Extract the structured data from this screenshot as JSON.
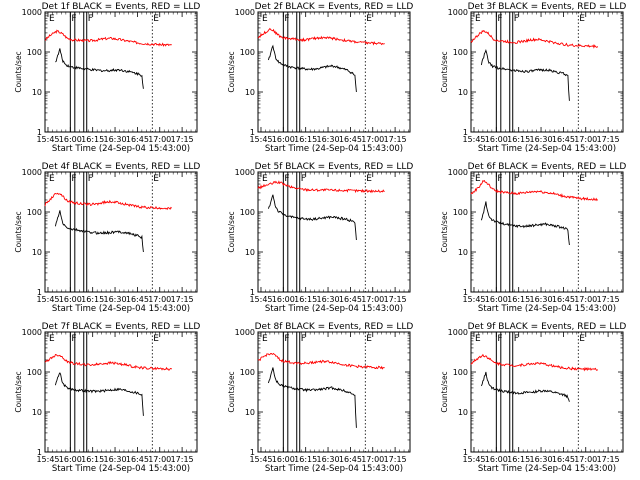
{
  "chart_data": [
    {
      "type": "line",
      "title": "Det 1f BLACK = Events, RED = LLD",
      "xlabel": "Start Time (24-Sep-04 15:43:00)",
      "ylabel": "Counts/sec",
      "x_ticks": [
        "15:45",
        "16:00",
        "16:15",
        "16:30",
        "16:45",
        "17:00",
        "17:15"
      ],
      "y_ticks": [
        "1",
        "10",
        "100",
        "1000"
      ],
      "ylim": [
        1,
        1000
      ],
      "y_scale": "log",
      "flags": [
        "E",
        "F",
        "F",
        "E"
      ],
      "series": [
        {
          "color": "#ff0000",
          "x": [
            0,
            3,
            6,
            8,
            10,
            12,
            15,
            19,
            25,
            30,
            35,
            40,
            45,
            50,
            55,
            60,
            65,
            70,
            75,
            80,
            85
          ],
          "values": [
            200,
            250,
            300,
            330,
            310,
            280,
            220,
            200,
            195,
            190,
            200,
            215,
            220,
            205,
            190,
            175,
            165,
            160,
            155,
            152,
            150
          ]
        },
        {
          "color": "#000000",
          "x": [
            7,
            8,
            9,
            10,
            11,
            12,
            14,
            18,
            22,
            26,
            30,
            35,
            40,
            45,
            50,
            55,
            60,
            63,
            64,
            65,
            66
          ],
          "values": [
            55,
            70,
            90,
            120,
            80,
            60,
            48,
            42,
            40,
            38,
            36,
            35,
            34,
            35,
            36,
            33,
            30,
            28,
            27,
            26,
            12
          ]
        }
      ]
    },
    {
      "type": "line",
      "title": "Det 2f BLACK = Events, RED = LLD",
      "xlabel": "Start Time (24-Sep-04 15:43:00)",
      "ylabel": "Counts/sec",
      "x_ticks": [
        "15:45",
        "16:00",
        "16:15",
        "16:30",
        "16:45",
        "17:00",
        "17:15"
      ],
      "y_ticks": [
        "1",
        "10",
        "100",
        "1000"
      ],
      "ylim": [
        1,
        1000
      ],
      "y_scale": "log",
      "flags": [
        "E",
        "F",
        "E"
      ],
      "series": [
        {
          "color": "#ff0000",
          "x": [
            0,
            3,
            6,
            8,
            10,
            12,
            15,
            19,
            25,
            30,
            35,
            40,
            45,
            50,
            55,
            60,
            65,
            70,
            75,
            80,
            85
          ],
          "values": [
            230,
            280,
            330,
            380,
            350,
            300,
            240,
            220,
            210,
            200,
            210,
            225,
            230,
            220,
            205,
            190,
            180,
            172,
            168,
            165,
            162
          ]
        },
        {
          "color": "#000000",
          "x": [
            7,
            8,
            9,
            10,
            11,
            12,
            14,
            18,
            22,
            26,
            30,
            35,
            40,
            45,
            50,
            55,
            60,
            63,
            64,
            65,
            66
          ],
          "values": [
            60,
            80,
            110,
            150,
            95,
            70,
            55,
            46,
            42,
            40,
            38,
            37,
            38,
            42,
            45,
            40,
            35,
            30,
            28,
            26,
            10
          ]
        }
      ]
    },
    {
      "type": "line",
      "title": "Det 3f BLACK = Events, RED = LLD",
      "xlabel": "Start Time (24-Sep-04 15:43:00)",
      "ylabel": "Counts/sec",
      "x_ticks": [
        "15:45",
        "16:00",
        "16:15",
        "16:30",
        "16:45",
        "17:00",
        "17:15"
      ],
      "y_ticks": [
        "1",
        "10",
        "100",
        "1000"
      ],
      "ylim": [
        1,
        1000
      ],
      "y_scale": "log",
      "flags": [
        "E",
        "F",
        "F",
        "E"
      ],
      "series": [
        {
          "color": "#ff0000",
          "x": [
            0,
            3,
            6,
            8,
            10,
            12,
            15,
            19,
            25,
            30,
            35,
            40,
            45,
            50,
            55,
            60,
            65,
            70,
            75,
            80,
            85
          ],
          "values": [
            180,
            230,
            290,
            330,
            320,
            280,
            210,
            190,
            180,
            175,
            185,
            200,
            205,
            190,
            175,
            160,
            150,
            145,
            142,
            140,
            138
          ]
        },
        {
          "color": "#000000",
          "x": [
            7,
            8,
            9,
            10,
            11,
            12,
            14,
            18,
            22,
            26,
            30,
            35,
            40,
            45,
            50,
            55,
            60,
            63,
            64,
            65,
            66
          ],
          "values": [
            50,
            65,
            85,
            110,
            75,
            55,
            45,
            40,
            38,
            36,
            34,
            33,
            33,
            35,
            36,
            33,
            30,
            28,
            26,
            25,
            6
          ]
        }
      ]
    },
    {
      "type": "line",
      "title": "Det 4f BLACK = Events, RED = LLD",
      "xlabel": "Start Time (24-Sep-04 15:43:00)",
      "ylabel": "Counts/sec",
      "x_ticks": [
        "15:45",
        "16:00",
        "16:15",
        "16:30",
        "16:45",
        "17:00",
        "17:15"
      ],
      "y_ticks": [
        "1",
        "10",
        "100",
        "1000"
      ],
      "ylim": [
        1,
        1000
      ],
      "y_scale": "log",
      "flags": [
        "E",
        "F",
        "F",
        "E"
      ],
      "series": [
        {
          "color": "#ff0000",
          "x": [
            0,
            3,
            6,
            8,
            10,
            12,
            15,
            19,
            25,
            30,
            35,
            40,
            45,
            50,
            55,
            60,
            65,
            70,
            75,
            80,
            85
          ],
          "values": [
            150,
            200,
            260,
            300,
            290,
            250,
            190,
            170,
            160,
            155,
            160,
            175,
            180,
            170,
            155,
            140,
            132,
            128,
            125,
            125,
            125
          ]
        },
        {
          "color": "#000000",
          "x": [
            7,
            8,
            9,
            10,
            11,
            12,
            14,
            18,
            22,
            26,
            30,
            35,
            40,
            45,
            50,
            55,
            60,
            63,
            64,
            65,
            66
          ],
          "values": [
            45,
            60,
            80,
            105,
            70,
            52,
            42,
            37,
            35,
            33,
            31,
            30,
            30,
            31,
            32,
            30,
            27,
            25,
            24,
            23,
            10
          ]
        }
      ]
    },
    {
      "type": "line",
      "title": "Det 5f BLACK = Events, RED = LLD",
      "xlabel": "Start Time (24-Sep-04 15:43:00)",
      "ylabel": "Counts/sec",
      "x_ticks": [
        "15:45",
        "16:00",
        "16:15",
        "16:30",
        "16:45",
        "17:00",
        "17:15"
      ],
      "y_ticks": [
        "1",
        "10",
        "100",
        "1000"
      ],
      "ylim": [
        1,
        1000
      ],
      "y_scale": "log",
      "flags": [
        "E",
        "F",
        "F",
        "E"
      ],
      "series": [
        {
          "color": "#ff0000",
          "x": [
            0,
            5,
            10,
            12,
            15,
            18,
            22,
            26,
            30,
            35,
            40,
            45,
            50,
            55,
            60,
            65,
            70,
            75,
            80,
            85
          ],
          "values": [
            400,
            460,
            520,
            560,
            540,
            480,
            420,
            390,
            370,
            360,
            355,
            355,
            350,
            348,
            345,
            340,
            338,
            335,
            332,
            330
          ]
        },
        {
          "color": "#000000",
          "x": [
            7,
            8,
            9,
            10,
            11,
            12,
            14,
            18,
            22,
            26,
            30,
            35,
            40,
            45,
            50,
            55,
            60,
            63,
            64,
            65,
            66
          ],
          "values": [
            120,
            150,
            200,
            280,
            180,
            130,
            100,
            85,
            75,
            70,
            68,
            66,
            68,
            72,
            75,
            70,
            65,
            60,
            58,
            55,
            20
          ]
        }
      ]
    },
    {
      "type": "line",
      "title": "Det 6f BLACK = Events, RED = LLD",
      "xlabel": "Start Time (24-Sep-04 15:43:00)",
      "ylabel": "Counts/sec",
      "x_ticks": [
        "15:45",
        "16:00",
        "16:15",
        "16:30",
        "16:45",
        "17:00",
        "17:15"
      ],
      "y_ticks": [
        "1",
        "10",
        "100",
        "1000"
      ],
      "ylim": [
        1,
        1000
      ],
      "y_scale": "log",
      "flags": [
        "E",
        "F",
        "F",
        "E"
      ],
      "series": [
        {
          "color": "#ff0000",
          "x": [
            0,
            3,
            6,
            8,
            10,
            12,
            15,
            19,
            25,
            30,
            35,
            40,
            45,
            50,
            55,
            60,
            65,
            70,
            75,
            80,
            85
          ],
          "values": [
            280,
            350,
            450,
            600,
            560,
            470,
            360,
            320,
            300,
            290,
            300,
            320,
            330,
            310,
            290,
            260,
            240,
            225,
            215,
            210,
            205
          ]
        },
        {
          "color": "#000000",
          "x": [
            7,
            8,
            9,
            10,
            11,
            12,
            14,
            18,
            22,
            26,
            30,
            35,
            40,
            45,
            50,
            55,
            60,
            63,
            64,
            65,
            66
          ],
          "values": [
            60,
            85,
            120,
            180,
            110,
            80,
            65,
            55,
            50,
            47,
            45,
            44,
            45,
            48,
            50,
            46,
            42,
            39,
            37,
            35,
            15
          ]
        }
      ]
    },
    {
      "type": "line",
      "title": "Det 7f BLACK = Events, RED = LLD",
      "xlabel": "Start Time (24-Sep-04 15:43:00)",
      "ylabel": "Counts/sec",
      "x_ticks": [
        "15:45",
        "16:00",
        "16:15",
        "16:30",
        "16:45",
        "17:00",
        "17:15"
      ],
      "y_ticks": [
        "1",
        "10",
        "100",
        "1000"
      ],
      "ylim": [
        1,
        1000
      ],
      "y_scale": "log",
      "flags": [
        "E",
        "F",
        "E"
      ],
      "series": [
        {
          "color": "#ff0000",
          "x": [
            0,
            3,
            6,
            8,
            10,
            12,
            15,
            19,
            25,
            30,
            35,
            40,
            45,
            50,
            55,
            60,
            65,
            70,
            75,
            80,
            85
          ],
          "values": [
            170,
            210,
            250,
            270,
            260,
            230,
            180,
            165,
            155,
            150,
            155,
            165,
            170,
            160,
            148,
            135,
            128,
            124,
            122,
            120,
            118
          ]
        },
        {
          "color": "#000000",
          "x": [
            7,
            8,
            9,
            10,
            11,
            12,
            14,
            18,
            22,
            26,
            30,
            35,
            40,
            45,
            50,
            55,
            60,
            63,
            64,
            65,
            66
          ],
          "values": [
            50,
            62,
            80,
            100,
            70,
            52,
            42,
            37,
            35,
            34,
            33,
            33,
            34,
            36,
            37,
            34,
            31,
            29,
            28,
            27,
            8
          ]
        }
      ]
    },
    {
      "type": "line",
      "title": "Det 8f BLACK = Events, RED = LLD",
      "xlabel": "Start Time (24-Sep-04 15:43:00)",
      "ylabel": "Counts/sec",
      "x_ticks": [
        "15:45",
        "16:00",
        "16:15",
        "16:30",
        "16:45",
        "17:00",
        "17:15"
      ],
      "y_ticks": [
        "1",
        "10",
        "100",
        "1000"
      ],
      "ylim": [
        1,
        1000
      ],
      "y_scale": "log",
      "flags": [
        "E",
        "F",
        "F",
        "E"
      ],
      "series": [
        {
          "color": "#ff0000",
          "x": [
            0,
            3,
            6,
            8,
            10,
            12,
            15,
            19,
            25,
            30,
            35,
            40,
            45,
            50,
            55,
            60,
            65,
            70,
            75,
            80,
            85
          ],
          "values": [
            190,
            230,
            270,
            290,
            280,
            250,
            195,
            180,
            170,
            165,
            170,
            180,
            185,
            175,
            160,
            148,
            140,
            135,
            132,
            130,
            128
          ]
        },
        {
          "color": "#000000",
          "x": [
            7,
            8,
            9,
            10,
            11,
            12,
            14,
            18,
            22,
            26,
            30,
            35,
            40,
            45,
            50,
            55,
            60,
            63,
            64,
            65,
            66
          ],
          "values": [
            55,
            70,
            95,
            130,
            85,
            62,
            50,
            43,
            40,
            38,
            36,
            35,
            36,
            38,
            40,
            36,
            32,
            29,
            27,
            25,
            4
          ]
        }
      ]
    },
    {
      "type": "line",
      "title": "Det 9f BLACK = Events, RED = LLD",
      "xlabel": "Start Time (24-Sep-04 15:43:00)",
      "ylabel": "Counts/sec",
      "x_ticks": [
        "15:45",
        "16:00",
        "16:15",
        "16:30",
        "16:45",
        "17:00",
        "17:15"
      ],
      "y_ticks": [
        "1",
        "10",
        "100",
        "1000"
      ],
      "ylim": [
        1,
        1000
      ],
      "y_scale": "log",
      "flags": [
        "E",
        "F",
        "F",
        "E"
      ],
      "series": [
        {
          "color": "#ff0000",
          "x": [
            0,
            3,
            6,
            8,
            10,
            12,
            15,
            19,
            25,
            30,
            35,
            40,
            45,
            50,
            55,
            60,
            65,
            70,
            75,
            80,
            85
          ],
          "values": [
            160,
            200,
            240,
            260,
            250,
            220,
            175,
            160,
            150,
            145,
            150,
            160,
            165,
            155,
            142,
            130,
            124,
            120,
            118,
            116,
            115
          ]
        },
        {
          "color": "#000000",
          "x": [
            7,
            8,
            9,
            10,
            11,
            12,
            14,
            18,
            22,
            26,
            30,
            35,
            40,
            45,
            50,
            55,
            60,
            63,
            64,
            65,
            66
          ],
          "values": [
            45,
            58,
            75,
            95,
            65,
            48,
            40,
            35,
            33,
            31,
            30,
            30,
            31,
            33,
            34,
            31,
            28,
            26,
            25,
            24,
            18
          ]
        }
      ]
    }
  ]
}
